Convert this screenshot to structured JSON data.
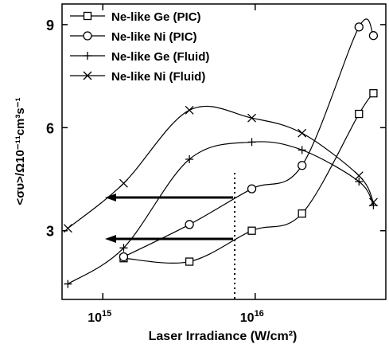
{
  "chart_data": {
    "type": "scatter",
    "xlabel": "Laser Irradiance (W/cm²)",
    "ylabel": "<συ>/Ω10⁻¹¹cm³s⁻¹",
    "xlim": [
      540000000000000.0,
      7.2e+16
    ],
    "ylim": [
      1,
      9.6
    ],
    "xlog": true,
    "xticks": [
      {
        "value": 1000000000000000.0,
        "label": "10",
        "exponent": "15"
      },
      {
        "value": 1e+16,
        "label": "10",
        "exponent": "16"
      }
    ],
    "yticks": [
      3,
      6,
      9
    ],
    "legend": "upper-left",
    "series": [
      {
        "name": "Ne-like Ge (PIC)",
        "marker": "square",
        "color": "#000000",
        "x": [
          1370000000000000.0,
          3700000000000000.0,
          9500000000000000.0,
          2.03e+16,
          4.8e+16,
          5.97e+16
        ],
        "values": [
          2.2,
          2.1,
          3.0,
          3.5,
          6.4,
          7.0
        ]
      },
      {
        "name": "Ne-like Ni (PIC)",
        "marker": "circle",
        "color": "#000000",
        "x": [
          1370000000000000.0,
          3700000000000000.0,
          9500000000000000.0,
          2.03e+16,
          4.8e+16,
          5.97e+16
        ],
        "values": [
          2.24,
          3.18,
          4.22,
          4.9,
          8.93,
          8.68
        ]
      },
      {
        "name": "Ne-like Ge (Fluid)",
        "marker": "plus",
        "color": "#000000",
        "x": [
          590000000000000.0,
          1370000000000000.0,
          3700000000000000.0,
          9500000000000000.0,
          2.03e+16,
          4.8e+16,
          5.97e+16
        ],
        "values": [
          1.45,
          2.5,
          5.08,
          5.58,
          5.35,
          4.43,
          3.74
        ]
      },
      {
        "name": "Ne-like Ni (Fluid)",
        "marker": "cross",
        "color": "#000000",
        "x": [
          590000000000000.0,
          1370000000000000.0,
          3700000000000000.0,
          9500000000000000.0,
          2.03e+16,
          4.8e+16,
          5.97e+16
        ],
        "values": [
          3.07,
          4.38,
          6.51,
          6.28,
          5.84,
          4.6,
          3.83
        ]
      }
    ]
  }
}
